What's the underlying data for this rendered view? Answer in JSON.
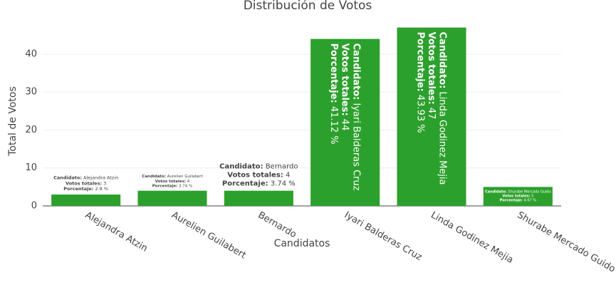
{
  "chart_data": {
    "type": "bar",
    "title": "Distribución de Votos",
    "x_label": "Candidatos",
    "y_label": "Total de Votos",
    "categories": [
      "Alejandra Atzin",
      "Aurelien Guilabert",
      "Bernardo",
      "Iyari Balderas Cruz",
      "Linda Godinez Mejia",
      "Shurabe Mercado Guido"
    ],
    "values": [
      3,
      4,
      4,
      44,
      47,
      5
    ],
    "label_keys": [
      "Candidato:",
      "Votos totales:",
      "Porcentaje:"
    ],
    "percent_labels": [
      "2.8 %",
      "3.74 %",
      "3.74 %",
      "41.12 %",
      "43.93 %",
      "4.67 %"
    ],
    "color": "#2ca02c",
    "ylim": [
      0,
      49
    ],
    "yticks": [
      0,
      10,
      20,
      30,
      40
    ],
    "grid": true
  }
}
